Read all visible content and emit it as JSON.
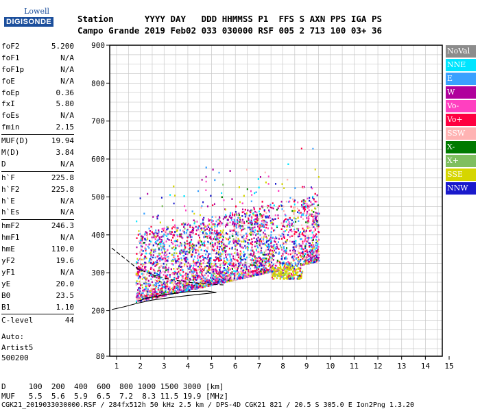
{
  "logo": {
    "line1": "Lowell",
    "line2": "DIGISONDE"
  },
  "header": {
    "row1": "Station      YYYY DAY   DDD HHMMSS P1  FFS S AXN PPS IGA PS",
    "row2": "Campo Grande 2019 Feb02 033 030000 RSF 005 2 713 100 03+ 36"
  },
  "params": [
    {
      "label": "foF2",
      "value": "5.200"
    },
    {
      "label": "foF1",
      "value": "N/A"
    },
    {
      "label": "foF1p",
      "value": "N/A"
    },
    {
      "label": "foE",
      "value": "N/A"
    },
    {
      "label": "foEp",
      "value": "0.36"
    },
    {
      "label": "fxI",
      "value": "5.80"
    },
    {
      "label": "foEs",
      "value": "N/A"
    },
    {
      "label": "fmin",
      "value": "2.15"
    },
    {
      "sep": true
    },
    {
      "label": "MUF(D)",
      "value": "19.94"
    },
    {
      "label": "M(D)",
      "value": "3.84"
    },
    {
      "label": "D",
      "value": "N/A"
    },
    {
      "sep": true
    },
    {
      "label": "h`F",
      "value": "225.8"
    },
    {
      "label": "h`F2",
      "value": "225.8"
    },
    {
      "label": "h`E",
      "value": "N/A"
    },
    {
      "label": "h`Es",
      "value": "N/A"
    },
    {
      "sep": true
    },
    {
      "label": "hmF2",
      "value": "246.3"
    },
    {
      "label": "hmF1",
      "value": "N/A"
    },
    {
      "label": "hmE",
      "value": "110.0"
    },
    {
      "label": "yF2",
      "value": "19.6"
    },
    {
      "label": "yF1",
      "value": "N/A"
    },
    {
      "label": "yE",
      "value": "20.0"
    },
    {
      "label": "B0",
      "value": "23.5"
    },
    {
      "label": "B1",
      "value": "1.10"
    },
    {
      "sep": true
    },
    {
      "label": "C-level",
      "value": "44"
    }
  ],
  "auto": {
    "line1": "Auto:",
    "line2": "Artist5",
    "line3": "500200"
  },
  "bottom": {
    "d_row": "D     100  200  400  600  800 1000 1500 3000 [km]",
    "muf_row": "MUF   5.5  5.6  5.9  6.5  7.2  8.3 11.5 19.9 [MHz]",
    "file_row": "CGK21_2019033030000.RSF / 284fx512h 50 kHz 2.5 km / DPS-4D CGK21 821 / 20.5 S 305.0 E Ion2Png 1.3.20"
  },
  "legend": [
    {
      "label": "NoVal",
      "color": "#8c8c8c",
      "text": "#ffffff"
    },
    {
      "label": "NNE",
      "color": "#00e5ff",
      "text": "#ffffff"
    },
    {
      "label": "E",
      "color": "#3aa0ff",
      "text": "#ffffff"
    },
    {
      "label": "W",
      "color": "#b0009c",
      "text": "#ffffff"
    },
    {
      "label": "Vo-",
      "color": "#ff40c0",
      "text": "#ffffff"
    },
    {
      "label": "Vo+",
      "color": "#ff0040",
      "text": "#ffffff"
    },
    {
      "label": "SSW",
      "color": "#ffb3b3",
      "text": "#ffffff"
    },
    {
      "label": "X-",
      "color": "#007a00",
      "text": "#ffffff"
    },
    {
      "label": "X+",
      "color": "#7fbf5f",
      "text": "#ffffff"
    },
    {
      "label": "SSE",
      "color": "#d6d600",
      "text": "#ffffff"
    },
    {
      "label": "NNW",
      "color": "#1a1acc",
      "text": "#ffffff"
    }
  ],
  "chart_data": {
    "type": "scatter",
    "title": "",
    "xlabel": "",
    "ylabel": "",
    "xlim": [
      1,
      15
    ],
    "ylim": [
      80,
      900
    ],
    "xticks": [
      1,
      2,
      3,
      4,
      5,
      6,
      7,
      8,
      9,
      10,
      11,
      12,
      13,
      14,
      15
    ],
    "yticks": [
      200,
      300,
      400,
      500,
      600,
      700,
      800,
      900
    ],
    "yticks_extra": [
      80
    ],
    "grid": true,
    "echo_region": {
      "freq_range": [
        1.8,
        9.5
      ],
      "height_range": [
        200,
        480
      ]
    },
    "trace_upper": [
      [
        0.8,
        365
      ],
      [
        1.3,
        340
      ],
      [
        1.9,
        310
      ],
      [
        2.5,
        295
      ],
      [
        3.2,
        283
      ],
      [
        4.0,
        275
      ],
      [
        4.8,
        270
      ],
      [
        5.5,
        268
      ]
    ],
    "trace_lower": [
      [
        0.8,
        203
      ],
      [
        1.3,
        210
      ],
      [
        1.9,
        220
      ],
      [
        2.5,
        228
      ],
      [
        3.2,
        234
      ],
      [
        4.0,
        240
      ],
      [
        4.6,
        244
      ],
      [
        5.2,
        248
      ],
      [
        4.8,
        252
      ],
      [
        4.0,
        250
      ],
      [
        3.0,
        242
      ],
      [
        2.2,
        232
      ],
      [
        1.9,
        225
      ]
    ]
  }
}
